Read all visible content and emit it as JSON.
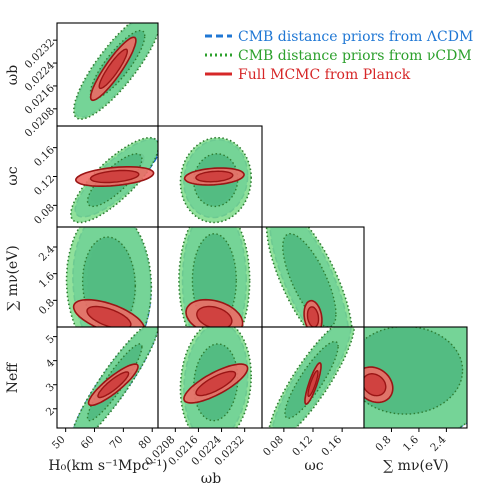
{
  "chart_data": {
    "type": "corner",
    "parameters": [
      "omega_b",
      "omega_c",
      "sum_m_nu",
      "N_eff",
      "H0"
    ],
    "axis_labels": {
      "H0": "H₀(km s⁻¹Mpc⁻¹)",
      "omega_b": "ωb",
      "omega_c": "ωc",
      "sum_m_nu": "∑ mν(eV)",
      "N_eff": "Neff"
    },
    "ranges": {
      "H0": [
        47,
        82
      ],
      "omega_b": [
        0.0202,
        0.0238
      ],
      "omega_c": [
        0.05,
        0.19
      ],
      "sum_m_nu": [
        0,
        3.0
      ],
      "N_eff": [
        1.2,
        5.4
      ]
    },
    "ticks": {
      "H0": [
        "50",
        "60",
        "70",
        "80"
      ],
      "omega_b_x": [
        "0.0208",
        "0.0216",
        "0.0224",
        "0.0232"
      ],
      "omega_b_y": [
        "0.0208",
        "0.0216",
        "0.0224",
        "0.0232"
      ],
      "omega_c_x": [
        "0.08",
        "0.12",
        "0.16"
      ],
      "omega_c_y": [
        "0.08",
        "0.12",
        "0.16"
      ],
      "sum_m_nu_x": [
        "0.8",
        "1.6",
        "2.4"
      ],
      "sum_m_nu_y": [
        "0.8",
        "1.6",
        "2.4"
      ],
      "N_eff_y": [
        "2",
        "3",
        "4",
        "5"
      ]
    },
    "legend": {
      "placement": "top-right",
      "entries": [
        {
          "label": "CMB distance priors from ΛCDM",
          "color": "#1f77d4",
          "line": "dashed"
        },
        {
          "label": "CMB distance priors from νCDM",
          "color": "#2ca02c",
          "line": "dotted"
        },
        {
          "label": "Full MCMC from Planck",
          "color": "#d62728",
          "line": "solid"
        }
      ]
    },
    "series": [
      {
        "name": "CMB distance priors from ΛCDM",
        "fill_outer": "#2f9be0",
        "fill_inner": "#1a6fc0"
      },
      {
        "name": "CMB distance priors from νCDM",
        "fill_outer": "#7ddc8a",
        "fill_inner": "#4cb87e"
      },
      {
        "name": "Full MCMC from Planck",
        "fill_outer": "#ee6b66",
        "fill_inner": "#cf3f3e"
      }
    ],
    "panels": [
      {
        "x": "H0",
        "y": "omega_b",
        "blue": {
          "center": [
            68,
            0.02235
          ],
          "sigma": [
            6,
            0.00075
          ],
          "rho": 0.85
        },
        "green": {
          "center": [
            68,
            0.02235
          ],
          "sigma": [
            6.2,
            0.00078
          ],
          "rho": 0.84
        },
        "red": {
          "center": [
            66.5,
            0.0222
          ],
          "sigma": [
            3.2,
            0.00045
          ],
          "rho": 0.9
        }
      },
      {
        "x": "H0",
        "y": "omega_c",
        "blue": {
          "center": [
            68,
            0.118
          ],
          "sigma": [
            6,
            0.022
          ],
          "rho": 0.82
        },
        "green": {
          "center": [
            67,
            0.115
          ],
          "sigma": [
            6.2,
            0.024
          ],
          "rho": 0.8
        },
        "red": {
          "center": [
            67,
            0.12
          ],
          "sigma": [
            5.5,
            0.0055
          ],
          "rho": 0.35
        }
      },
      {
        "x": "omega_b",
        "y": "omega_c",
        "blue": {
          "center": [
            0.0222,
            0.117
          ],
          "sigma": [
            0.00045,
            0.022
          ],
          "rho": 0.08
        },
        "green": {
          "center": [
            0.0222,
            0.115
          ],
          "sigma": [
            0.0005,
            0.024
          ],
          "rho": 0.05
        },
        "red": {
          "center": [
            0.02215,
            0.12
          ],
          "sigma": [
            0.00042,
            0.0048
          ],
          "rho": 0.22
        }
      },
      {
        "x": "H0",
        "y": "sum_m_nu",
        "blue": {
          "center": [
            66,
            1.3
          ],
          "sigma": [
            5.5,
            0.9
          ],
          "rho": -0.08
        },
        "green": {
          "center": [
            65,
            1.3
          ],
          "sigma": [
            6,
            0.92
          ],
          "rho": -0.05
        },
        "red": {
          "center": [
            65,
            0.28
          ],
          "sigma": [
            5,
            0.22
          ],
          "rho": -0.6
        }
      },
      {
        "x": "omega_b",
        "y": "sum_m_nu",
        "blue": {
          "center": [
            0.02215,
            1.4
          ],
          "sigma": [
            0.00045,
            0.9
          ],
          "rho": 0
        },
        "green": {
          "center": [
            0.02215,
            1.4
          ],
          "sigma": [
            0.0005,
            0.92
          ],
          "rho": 0
        },
        "red": {
          "center": [
            0.02215,
            0.28
          ],
          "sigma": [
            0.0004,
            0.22
          ],
          "rho": -0.3
        }
      },
      {
        "x": "omega_c",
        "y": "sum_m_nu",
        "blue": {
          "center": [
            0.115,
            1.4
          ],
          "sigma": [
            0.022,
            0.9
          ],
          "rho": -0.75
        },
        "green": {
          "center": [
            0.115,
            1.4
          ],
          "sigma": [
            0.024,
            0.92
          ],
          "rho": -0.72
        },
        "red": {
          "center": [
            0.12,
            0.3
          ],
          "sigma": [
            0.005,
            0.2
          ],
          "rho": -0.2
        }
      },
      {
        "x": "H0",
        "y": "N_eff",
        "blue": {
          "center": [
            67,
            3.1
          ],
          "sigma": [
            6,
            1.0
          ],
          "rho": 0.92
        },
        "green": {
          "center": [
            67,
            3.1
          ],
          "sigma": [
            6.2,
            1.05
          ],
          "rho": 0.92
        },
        "red": {
          "center": [
            66.5,
            3.0
          ],
          "sigma": [
            3.5,
            0.35
          ],
          "rho": 0.88
        }
      },
      {
        "x": "omega_b",
        "y": "N_eff",
        "blue": {
          "center": [
            0.0222,
            3.1
          ],
          "sigma": [
            0.00045,
            1.0
          ],
          "rho": 0.12
        },
        "green": {
          "center": [
            0.0222,
            3.1
          ],
          "sigma": [
            0.0005,
            1.05
          ],
          "rho": 0.1
        },
        "red": {
          "center": [
            0.0222,
            3.05
          ],
          "sigma": [
            0.00045,
            0.33
          ],
          "rho": 0.78
        }
      },
      {
        "x": "omega_c",
        "y": "N_eff",
        "blue": {
          "center": [
            0.118,
            3.2
          ],
          "sigma": [
            0.022,
            1.0
          ],
          "rho": 0.88
        },
        "green": {
          "center": [
            0.118,
            3.2
          ],
          "sigma": [
            0.024,
            1.05
          ],
          "rho": 0.87
        },
        "red": {
          "center": [
            0.12,
            3.05
          ],
          "sigma": [
            0.0045,
            0.35
          ],
          "rho": 0.85
        }
      },
      {
        "x": "sum_m_nu",
        "y": "N_eff",
        "blue": {
          "center": [
            1.2,
            3.6
          ],
          "sigma": [
            1.1,
            1.2
          ],
          "rho": 0
        },
        "green": {
          "center": [
            1.2,
            3.6
          ],
          "sigma": [
            1.1,
            1.2
          ],
          "rho": 0
        },
        "red": {
          "center": [
            0.3,
            3.0
          ],
          "sigma": [
            0.22,
            0.3
          ],
          "rho": -0.2
        }
      }
    ]
  }
}
